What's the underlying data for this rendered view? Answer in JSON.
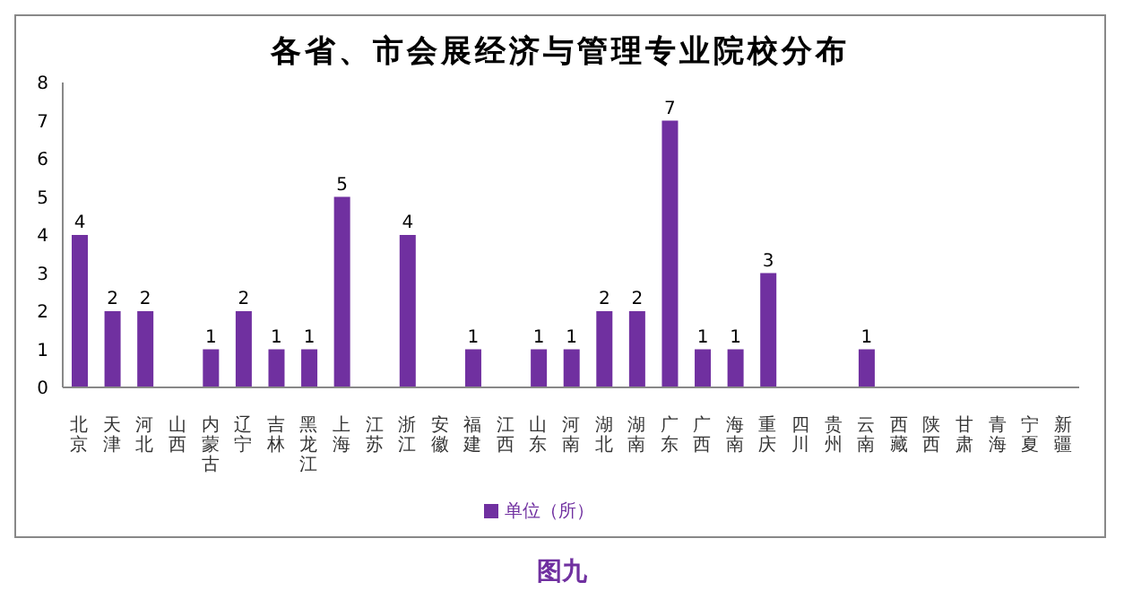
{
  "chart_data": {
    "type": "bar",
    "title": "各省、市会展经济与管理专业院校分布",
    "categories": [
      "北京",
      "天津",
      "河北",
      "山西",
      "内蒙古",
      "辽宁",
      "吉林",
      "黑龙江",
      "上海",
      "江苏",
      "浙江",
      "安徽",
      "福建",
      "江西",
      "山东",
      "河南",
      "湖北",
      "湖南",
      "广东",
      "广西",
      "海南",
      "重庆",
      "四川",
      "贵州",
      "云南",
      "西藏",
      "陕西",
      "甘肃",
      "青海",
      "宁夏",
      "新疆"
    ],
    "series": [
      {
        "name": "单位（所）",
        "color": "#7030a0",
        "values": [
          4,
          2,
          2,
          0,
          1,
          2,
          1,
          1,
          5,
          0,
          4,
          0,
          1,
          0,
          1,
          1,
          2,
          2,
          7,
          1,
          1,
          3,
          0,
          0,
          1,
          0,
          0,
          0,
          0,
          0,
          0
        ],
        "value_labels": [
          "4",
          "2",
          "2",
          null,
          "1",
          "2",
          "1",
          "1",
          "5",
          null,
          "4",
          null,
          "1",
          null,
          "1",
          "1",
          "2",
          "2",
          "7",
          "1",
          "1",
          "3",
          null,
          null,
          "1",
          null,
          null,
          null,
          null,
          null,
          null
        ]
      }
    ],
    "ylim": [
      0,
      8
    ],
    "yticks": [
      0,
      1,
      2,
      3,
      4,
      5,
      6,
      7,
      8
    ],
    "grid": false,
    "legend": "bottom",
    "annotations": [
      "图九"
    ]
  }
}
